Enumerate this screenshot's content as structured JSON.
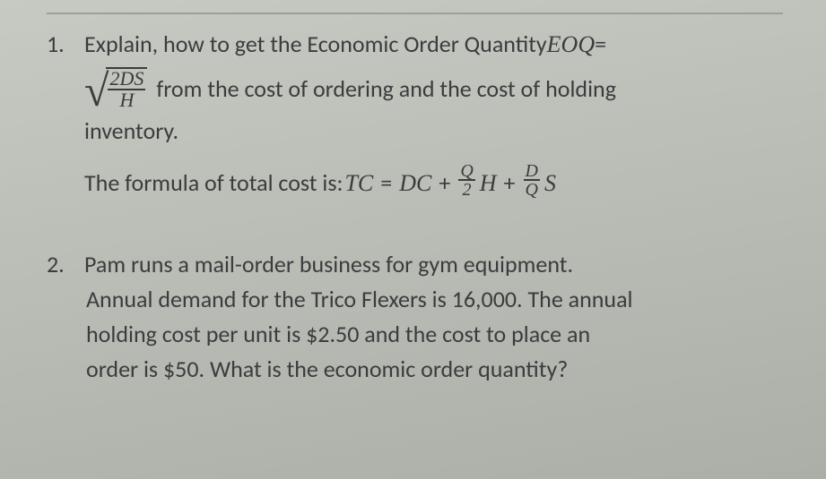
{
  "page": {
    "background_gradient": [
      "#c7c9c3",
      "#acaea8"
    ],
    "text_color": "#3b3c3d",
    "rule_color": "#9c9e98",
    "font_family": "Calibri",
    "math_font_family": "Georgia",
    "base_fontsize_pt": 20
  },
  "q1": {
    "number": "1.",
    "line1_a": "Explain, how to get the Economic Order Quantity ",
    "line1_eoq": "EOQ",
    "line1_eq": " =",
    "radical": {
      "numerator": "2DS",
      "denominator": "H"
    },
    "line2_tail": " from the cost of ordering and the cost of holding",
    "line3": "inventory.",
    "line4_a": "The formula of total cost is:  ",
    "formula": {
      "tc": "TC",
      "eq": "=",
      "dc": "DC",
      "plus": "+",
      "f1_num": "Q",
      "f1_den": "2",
      "H": "H",
      "f2_num": "D",
      "f2_den": "Q",
      "S": "S"
    }
  },
  "q2": {
    "number": "2.",
    "l1": "Pam runs a mail-order business for gym equipment.",
    "l2": "Annual demand for the Trico Flexers is 16,000. The annual",
    "l3": "holding cost per unit is $2.50 and the cost to place an",
    "l4": "order is $50. What is the economic order quantity?"
  }
}
